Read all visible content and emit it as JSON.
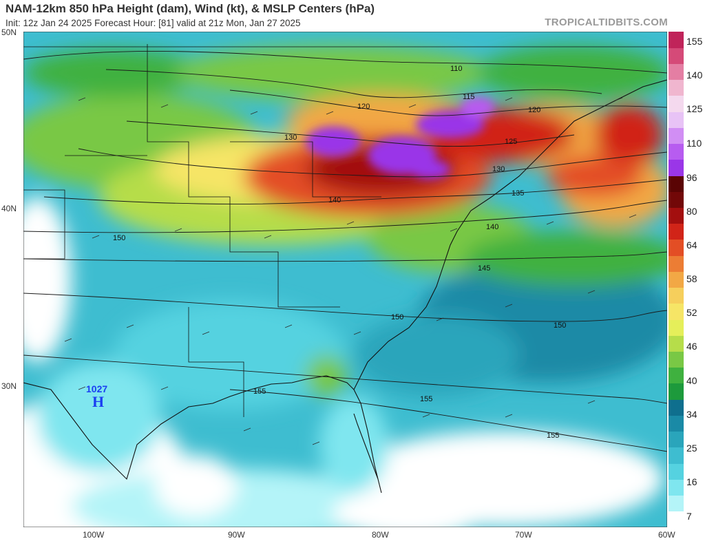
{
  "header": {
    "title": "NAM-12km 850 hPa Height (dam), Wind (kt), & MSLP Centers (hPa)",
    "subtitle": "Init: 12z Jan 24 2025   Forecast Hour: [81]   valid at 21z Mon, Jan 27 2025",
    "brand": "TROPICALTIDBITS.COM"
  },
  "axes": {
    "lat_labels": [
      "50N",
      "40N",
      "30N"
    ],
    "lon_labels": [
      "100W",
      "90W",
      "80W",
      "70W",
      "60W"
    ]
  },
  "colorbar": {
    "ticks": [
      "155",
      "140",
      "125",
      "110",
      "96",
      "80",
      "64",
      "58",
      "52",
      "46",
      "40",
      "34",
      "25",
      "16",
      "7"
    ],
    "colors": [
      "#ffffff",
      "#b4f4f8",
      "#7fe6ef",
      "#55d2e0",
      "#3ebdd0",
      "#2aa5bb",
      "#1a8aa6",
      "#0f6f8e",
      "#1d9a3c",
      "#3fb13f",
      "#79c845",
      "#b6dd4a",
      "#e5ef5a",
      "#f6e566",
      "#f6cf5c",
      "#f2a845",
      "#ec7d34",
      "#e34e25",
      "#d12418",
      "#a30f0f",
      "#720808",
      "#5a0404",
      "#9a36e8",
      "#b75cf0",
      "#d18ef4",
      "#e8c3f6",
      "#f4d9ee",
      "#f0b6cf",
      "#e47ea3",
      "#d54a78",
      "#c0245a"
    ]
  },
  "map": {
    "height_contour_labels": [
      "110",
      "115",
      "120",
      "120",
      "125",
      "130",
      "130",
      "135",
      "140",
      "140",
      "145",
      "150",
      "150",
      "150",
      "155",
      "155",
      "155"
    ],
    "high_pressure": {
      "value": "1027",
      "symbol": "H"
    },
    "colors": {
      "water": "#2a9fb8",
      "land_light": "#7fe6ef",
      "border": "#111111",
      "high": "#1b3ff2"
    }
  }
}
